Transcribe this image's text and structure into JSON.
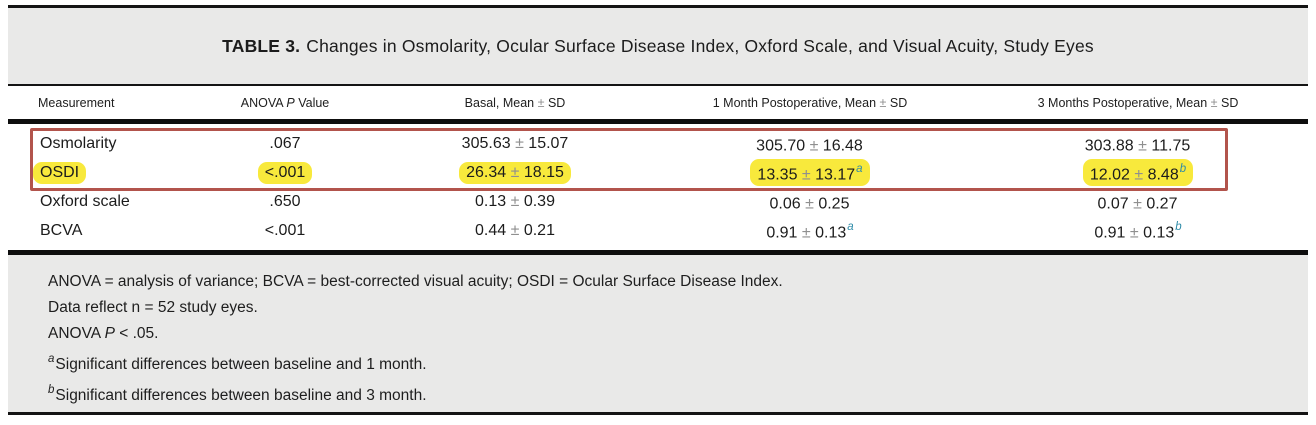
{
  "table": {
    "title_bold": "TABLE 3.",
    "title_rest": "Changes in Osmolarity, Ocular Surface Disease Index, Oxford Scale, and Visual Acuity, Study Eyes",
    "header": {
      "measurement": "Measurement",
      "anova_pre": "ANOVA",
      "anova_italic": "P",
      "anova_post": "Value",
      "basal": "Basal, Mean ± SD",
      "month1": "1 Month Postoperative, Mean ± SD",
      "month3": "3 Months Postoperative, Mean ± SD"
    },
    "rows": [
      {
        "measurement": "Osmolarity",
        "anova": ".067",
        "basal": "305.63 ± 15.07",
        "month1": "305.70 ± 16.48",
        "month1_sup": "",
        "month3": "303.88 ± 11.75",
        "month3_sup": "",
        "highlighted": false
      },
      {
        "measurement": "OSDI",
        "anova": "<.001",
        "basal": "26.34 ± 18.15",
        "month1": "13.35 ± 13.17",
        "month1_sup": "a",
        "month3": "12.02 ± 8.48",
        "month3_sup": "b",
        "highlighted": true
      },
      {
        "measurement": "Oxford scale",
        "anova": ".650",
        "basal": "0.13 ± 0.39",
        "month1": "0.06 ± 0.25",
        "month1_sup": "",
        "month3": "0.07 ± 0.27",
        "month3_sup": "",
        "highlighted": false
      },
      {
        "measurement": "BCVA",
        "anova": "<.001",
        "basal": "0.44 ± 0.21",
        "month1": "0.91 ± 0.13",
        "month1_sup": "a",
        "month3": "0.91 ± 0.13",
        "month3_sup": "b",
        "highlighted": false
      }
    ],
    "footnotes": {
      "abbrev": "ANOVA = analysis of variance; BCVA = best-corrected visual acuity; OSDI = Ocular Surface Disease Index.",
      "n_line": "Data reflect n = 52 study eyes.",
      "p_pre": "ANOVA",
      "p_italic": "P",
      "p_post": "< .05.",
      "a_sup": "a",
      "a_text": "Significant differences between baseline and 1 month.",
      "b_sup": "b",
      "b_text": "Significant differences between baseline and 3 month."
    },
    "annotations": {
      "highlight_color": "#f8e93c",
      "box_color": "#b2544c",
      "superscript_color": "#2e8ba8"
    }
  }
}
